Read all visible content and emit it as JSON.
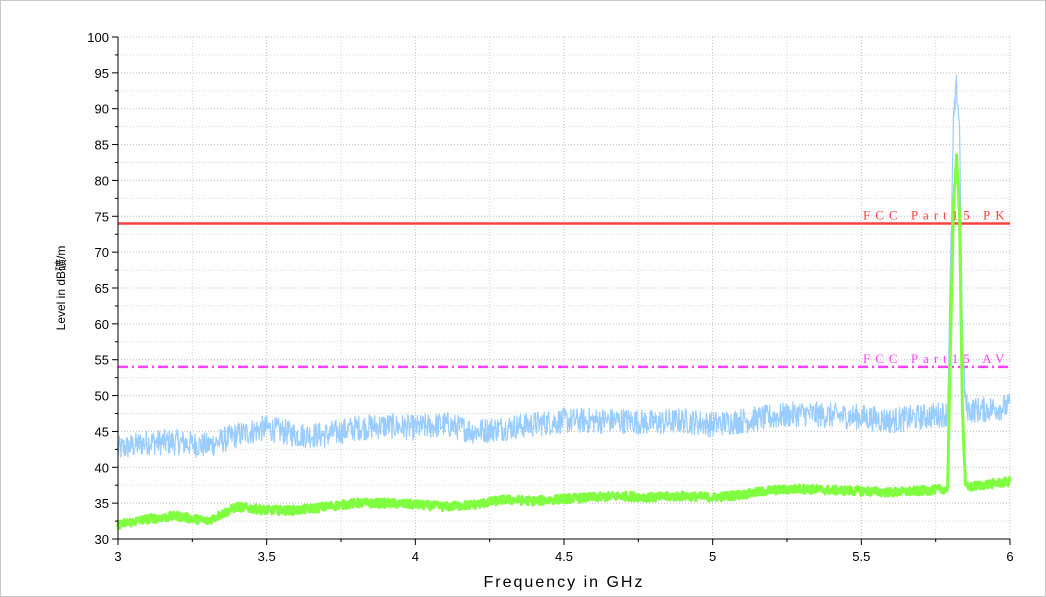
{
  "chart_data": {
    "type": "line",
    "title": "",
    "xlabel": "Frequency in GHz",
    "ylabel": "Level in dB礦/m",
    "xlim": [
      3,
      6
    ],
    "ylim": [
      30,
      100
    ],
    "x_ticks": [
      "3",
      "3.5",
      "4",
      "4.5",
      "5",
      "5.5",
      "6"
    ],
    "y_ticks": [
      "30",
      "35",
      "40",
      "45",
      "50",
      "55",
      "60",
      "65",
      "70",
      "75",
      "80",
      "85",
      "90",
      "95",
      "100"
    ],
    "grid": true,
    "limit_lines": [
      {
        "label": "FCC Part15 PK",
        "value": 74,
        "color": "#ff4040",
        "style": "solid"
      },
      {
        "label": "FCC Part15 AV",
        "value": 54,
        "color": "#ff40ff",
        "style": "dash-dot"
      }
    ],
    "series": [
      {
        "color": "#99ccff",
        "noise": 1.8,
        "x": [
          3.0,
          3.1,
          3.2,
          3.3,
          3.4,
          3.5,
          3.6,
          3.7,
          3.8,
          3.9,
          4.0,
          4.1,
          4.2,
          4.3,
          4.4,
          4.5,
          4.6,
          4.7,
          4.8,
          4.9,
          5.0,
          5.1,
          5.2,
          5.3,
          5.4,
          5.5,
          5.6,
          5.7,
          5.79,
          5.81,
          5.82,
          5.83,
          5.84,
          5.85,
          5.86,
          5.9,
          6.0
        ],
        "y": [
          42.5,
          43.5,
          43.5,
          43.0,
          44.5,
          45.5,
          44.5,
          44.5,
          45.5,
          45.8,
          45.5,
          46.0,
          45.0,
          45.5,
          46.0,
          46.5,
          46.5,
          46.5,
          46.2,
          46.5,
          46.0,
          46.5,
          47.0,
          47.5,
          47.2,
          47.0,
          46.5,
          47.0,
          47.5,
          88.0,
          93.0,
          88.0,
          58.0,
          49.0,
          48.0,
          48.0,
          48.5
        ]
      },
      {
        "color": "#80ff40",
        "noise": 0.6,
        "x": [
          3.0,
          3.1,
          3.2,
          3.3,
          3.4,
          3.5,
          3.6,
          3.7,
          3.8,
          3.9,
          4.0,
          4.1,
          4.2,
          4.3,
          4.4,
          4.5,
          4.6,
          4.7,
          4.8,
          4.9,
          5.0,
          5.1,
          5.2,
          5.3,
          5.4,
          5.5,
          5.6,
          5.7,
          5.79,
          5.81,
          5.82,
          5.83,
          5.84,
          5.85,
          5.86,
          5.9,
          6.0
        ],
        "y": [
          32.0,
          32.8,
          33.2,
          32.5,
          34.5,
          34.0,
          34.0,
          34.5,
          35.0,
          35.0,
          34.8,
          34.5,
          34.8,
          35.5,
          35.3,
          35.6,
          35.8,
          36.0,
          35.8,
          36.0,
          35.8,
          36.2,
          36.8,
          37.0,
          36.8,
          36.7,
          36.5,
          36.7,
          37.0,
          77.0,
          83.0,
          76.0,
          48.0,
          37.5,
          37.2,
          37.5,
          38.0
        ]
      }
    ]
  }
}
